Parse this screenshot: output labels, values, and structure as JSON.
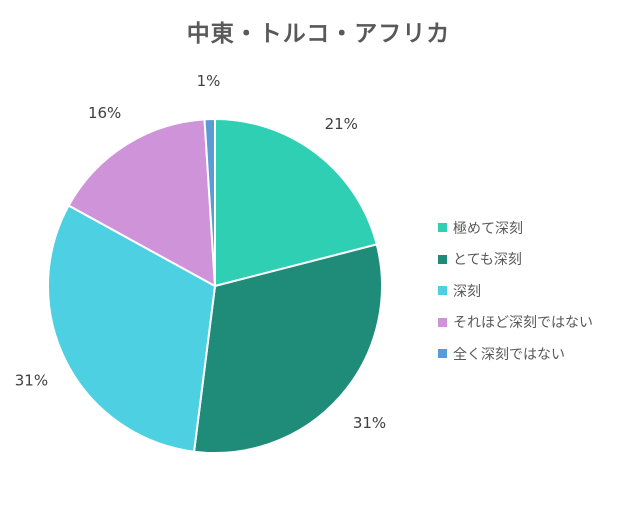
{
  "chart_data": {
    "type": "pie",
    "title": "中東・トルコ・アフリカ",
    "categories": [
      "極めて深刻",
      "とても深刻",
      "深刻",
      "それほど深刻ではない",
      "全く深刻ではない"
    ],
    "values": [
      21,
      31,
      31,
      16,
      1
    ],
    "labels": [
      "21%",
      "31%",
      "31%",
      "16%",
      "1%"
    ],
    "colors": [
      "#2ECFB3",
      "#1E8C78",
      "#4DD0E1",
      "#CE93D8",
      "#5B9BD5"
    ],
    "legend_position": "right"
  }
}
